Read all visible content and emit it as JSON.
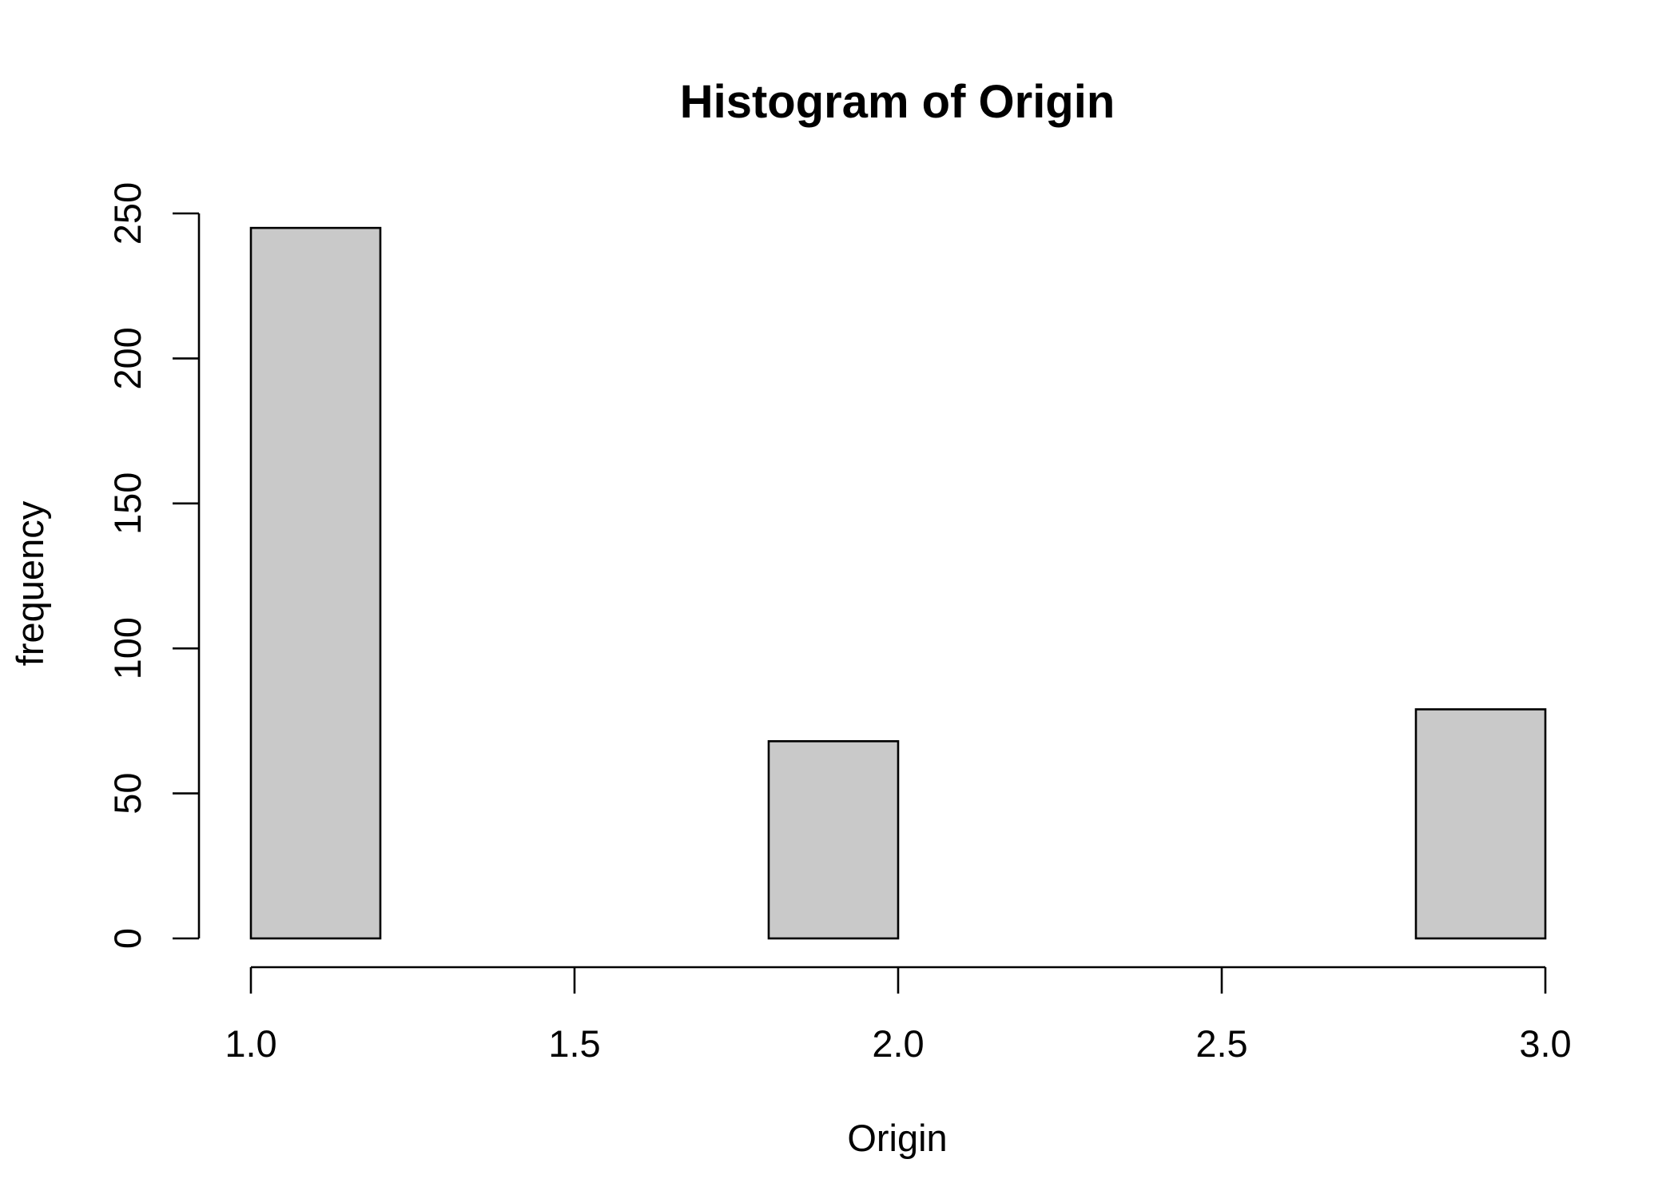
{
  "chart_data": {
    "type": "bar",
    "title": "Histogram of Origin",
    "xlabel": "Origin",
    "ylabel": "frequency",
    "bin_edges": [
      1.0,
      1.2,
      1.4,
      1.6,
      1.8,
      2.0,
      2.2,
      2.4,
      2.6,
      2.8,
      3.0
    ],
    "values": [
      245,
      0,
      0,
      0,
      68,
      0,
      0,
      0,
      0,
      79
    ],
    "xlim": [
      1.0,
      3.0
    ],
    "ylim": [
      0,
      250
    ],
    "x_ticks": [
      1.0,
      1.5,
      2.0,
      2.5,
      3.0
    ],
    "x_tick_labels": [
      "1.0",
      "1.5",
      "2.0",
      "2.5",
      "3.0"
    ],
    "y_ticks": [
      0,
      50,
      100,
      150,
      200,
      250
    ],
    "y_tick_labels": [
      "0",
      "50",
      "100",
      "150",
      "200",
      "250"
    ],
    "bar_fill": "#c9c9c9",
    "bar_stroke": "#000000",
    "grid": false,
    "legend": "none"
  }
}
